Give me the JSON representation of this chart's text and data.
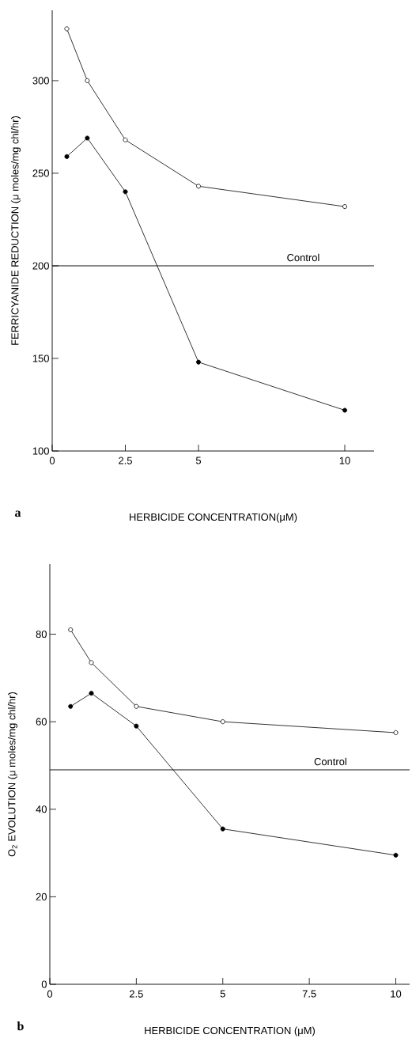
{
  "chart_data": [
    {
      "type": "line",
      "xlabel": "HERBICIDE CONCENTRATION(μM)",
      "ylabel": "FERRICYANIDE REDUCTION (μ moles/mg chl/hr)",
      "annotations": [
        "a"
      ],
      "marker": "circle",
      "line_style": "solid",
      "xlim": [
        0,
        11
      ],
      "xticks": [
        0,
        2.5,
        5,
        10
      ],
      "ylim": [
        100,
        338
      ],
      "yticks": [
        100,
        150,
        200,
        250,
        300
      ],
      "series": [
        {
          "color": "#000000",
          "x": [
            0.5,
            1.2,
            2.5,
            5,
            10
          ],
          "values": [
            328,
            300,
            268,
            243,
            232
          ]
        },
        {
          "color": "#000000",
          "x": [
            0.5,
            1.2,
            2.5,
            5,
            10
          ],
          "values": [
            259,
            269,
            240,
            148,
            122
          ]
        }
      ],
      "ref_lines": [
        {
          "axis": "y",
          "value": 200,
          "label": "Control",
          "color": "#000000"
        }
      ]
    },
    {
      "type": "line",
      "xlabel": "HERBICIDE CONCENTRATION (μM)",
      "ylabel": "O$_{2}$ EVOLUTION (μ moles/mg chl/hr)",
      "annotations": [
        "b"
      ],
      "marker": "circle",
      "line_style": "solid",
      "xlim": [
        0,
        10.4
      ],
      "xticks": [
        0,
        2.5,
        5,
        7.5,
        10
      ],
      "ylim": [
        0,
        96
      ],
      "yticks": [
        0,
        20,
        40,
        60,
        80
      ],
      "series": [
        {
          "color": "#000000",
          "x": [
            0.6,
            1.2,
            2.5,
            5,
            10
          ],
          "values": [
            81,
            73.5,
            63.5,
            60,
            57.5
          ]
        },
        {
          "color": "#000000",
          "x": [
            0.6,
            1.2,
            2.5,
            5,
            10
          ],
          "values": [
            63.5,
            66.5,
            59,
            35.5,
            29.5
          ]
        }
      ],
      "ref_lines": [
        {
          "axis": "y",
          "value": 49,
          "label": "Control",
          "color": "#000000"
        }
      ]
    }
  ]
}
